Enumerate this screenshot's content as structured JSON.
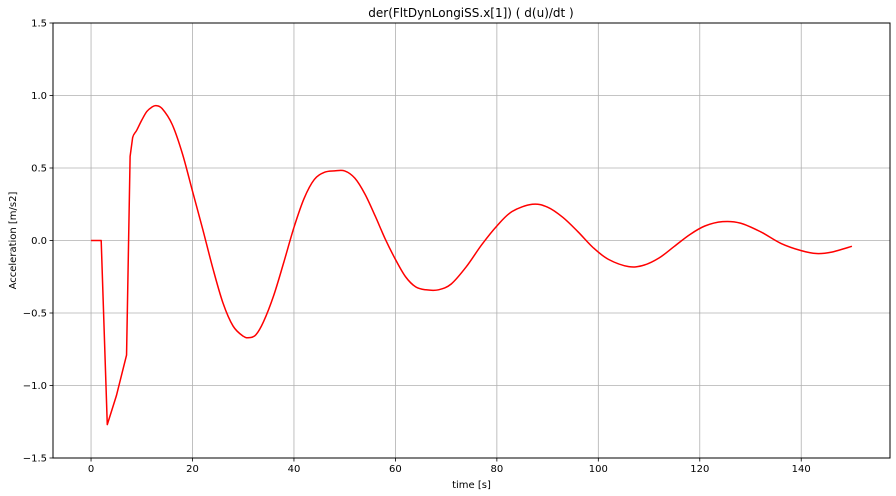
{
  "chart_data": {
    "type": "line",
    "title": "der(FltDynLongiSS.x[1]) ( d(u)/dt )",
    "xlabel": "time [s]",
    "ylabel": "Acceleration [m/s2]",
    "xlim": [
      -7.5,
      157.5
    ],
    "ylim": [
      -1.5,
      1.5
    ],
    "xticks": [
      0,
      20,
      40,
      60,
      80,
      100,
      120,
      140
    ],
    "yticks": [
      -1.5,
      -1.0,
      -0.5,
      0.0,
      0.5,
      1.0,
      1.5
    ],
    "xtick_labels": [
      "0",
      "20",
      "40",
      "60",
      "80",
      "100",
      "120",
      "140"
    ],
    "ytick_labels": [
      "−1.5",
      "−1.0",
      "−0.5",
      "0.0",
      "0.5",
      "1.0",
      "1.5"
    ],
    "grid": true,
    "color": "#ff0000",
    "x": [
      0,
      1,
      2,
      3.2,
      5,
      7,
      7.7,
      8.2,
      9,
      10,
      11,
      12,
      12.8,
      14,
      16,
      18,
      20,
      22,
      24,
      26,
      28,
      30,
      31.2,
      32.5,
      34,
      36,
      38,
      40,
      42,
      44,
      46,
      48,
      50,
      52,
      54,
      56,
      58,
      60,
      62,
      64,
      66,
      68.5,
      71,
      74,
      77,
      80,
      83,
      87,
      90,
      93,
      96,
      99,
      102,
      106,
      109,
      112,
      115,
      118,
      121,
      124.5,
      128,
      132,
      136,
      140,
      143,
      146,
      150
    ],
    "y": [
      0.0,
      0.0,
      0.0,
      -1.27,
      -1.07,
      -0.79,
      0.58,
      0.71,
      0.76,
      0.83,
      0.89,
      0.92,
      0.93,
      0.91,
      0.8,
      0.6,
      0.34,
      0.08,
      -0.19,
      -0.43,
      -0.59,
      -0.66,
      -0.67,
      -0.65,
      -0.56,
      -0.38,
      -0.15,
      0.09,
      0.29,
      0.42,
      0.47,
      0.48,
      0.48,
      0.43,
      0.32,
      0.17,
      0.01,
      -0.13,
      -0.25,
      -0.32,
      -0.34,
      -0.34,
      -0.3,
      -0.18,
      -0.03,
      0.1,
      0.2,
      0.25,
      0.23,
      0.16,
      0.06,
      -0.05,
      -0.13,
      -0.18,
      -0.17,
      -0.12,
      -0.04,
      0.04,
      0.1,
      0.13,
      0.12,
      0.06,
      -0.02,
      -0.07,
      -0.09,
      -0.08,
      -0.04
    ]
  }
}
